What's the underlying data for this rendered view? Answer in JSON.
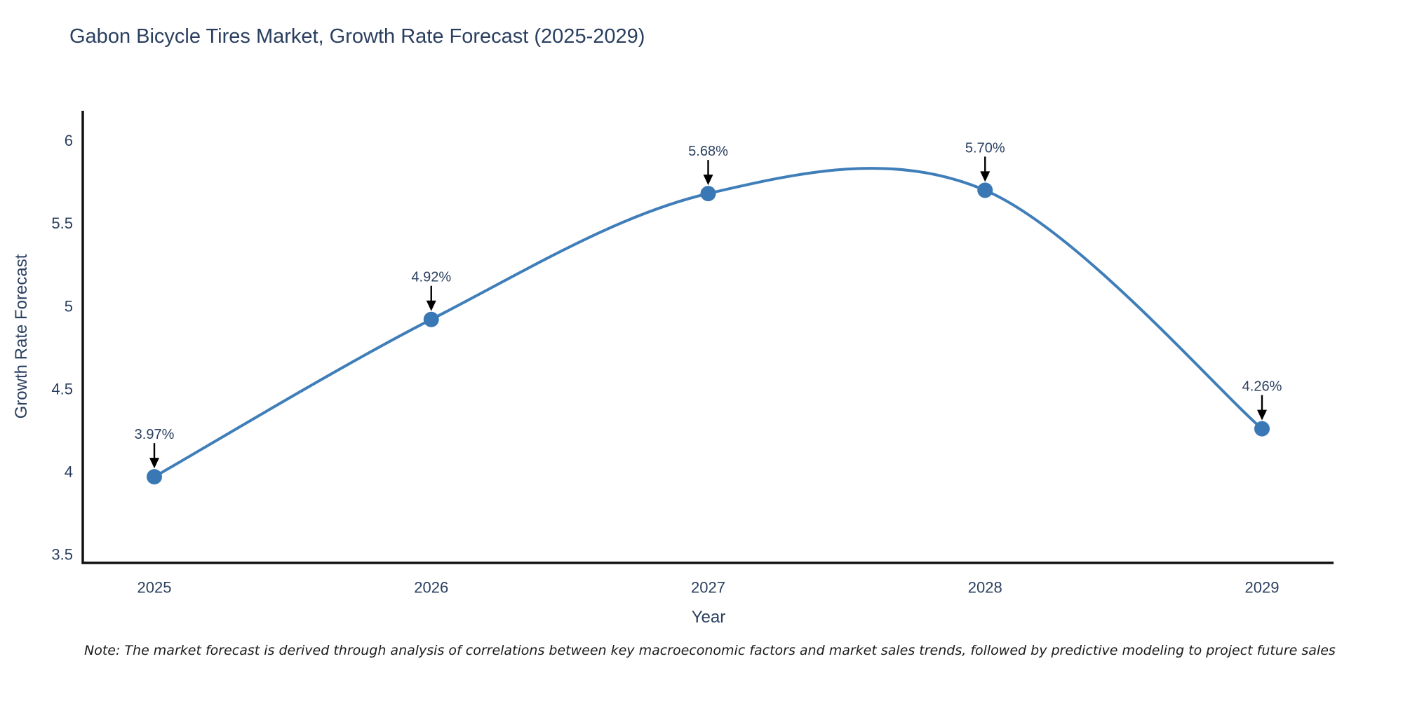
{
  "title": "Gabon Bicycle Tires Market, Growth Rate Forecast (2025-2029)",
  "note": "Note: The market forecast is derived through analysis of correlations between key macroeconomic factors and market sales trends, followed by predictive modeling to project future sales",
  "chart_data": {
    "type": "line",
    "line_shape": "spline",
    "title": "Gabon Bicycle Tires Market, Growth Rate Forecast (2025-2029)",
    "xlabel": "Year",
    "ylabel": "Growth Rate Forecast",
    "x": [
      "2025",
      "2026",
      "2027",
      "2028",
      "2029"
    ],
    "values": [
      3.97,
      4.92,
      5.68,
      5.7,
      4.26
    ],
    "point_labels": [
      "3.97%",
      "4.92%",
      "5.68%",
      "5.70%",
      "4.26%"
    ],
    "yticks": [
      3.5,
      4,
      4.5,
      5,
      5.5,
      6
    ],
    "ylim": [
      3.45,
      6.18
    ],
    "grid": false,
    "legend": "none",
    "annotation_style": "label-with-down-arrow",
    "colors": {
      "line": "#3f7eb9",
      "marker": "#3a78b5",
      "axis_line": "#111111",
      "text": "#2a3f5f",
      "annotation_arrow": "#000000",
      "note_text": "#1a1a1a",
      "background": "#ffffff"
    }
  }
}
